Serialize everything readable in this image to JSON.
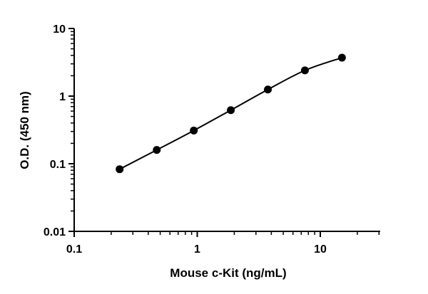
{
  "chart_data": {
    "type": "scatter",
    "xscale": "log",
    "yscale": "log",
    "xlim": [
      0.1,
      30
    ],
    "ylim": [
      0.01,
      10
    ],
    "grid": false,
    "xlabel": "Mouse c-Kit (ng/mL)",
    "ylabel": "O.D. (450 nm)",
    "x_ticks": [
      "0.1",
      "1",
      "10"
    ],
    "y_ticks": [
      "0.01",
      "0.1",
      "1",
      "10"
    ],
    "series": [
      {
        "points": [
          {
            "x": 0.234,
            "y": 0.083
          },
          {
            "x": 0.469,
            "y": 0.16
          },
          {
            "x": 0.938,
            "y": 0.31
          },
          {
            "x": 1.875,
            "y": 0.62
          },
          {
            "x": 3.75,
            "y": 1.25
          },
          {
            "x": 7.5,
            "y": 2.4
          },
          {
            "x": 15,
            "y": 3.7
          }
        ],
        "fit": "curve",
        "color": "#000000"
      }
    ]
  }
}
